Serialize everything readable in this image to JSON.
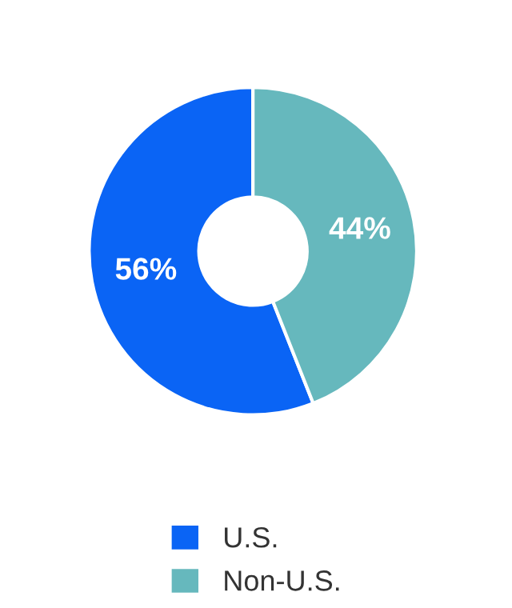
{
  "chart_data": {
    "type": "donut",
    "categories": [
      "U.S.",
      "Non-U.S."
    ],
    "values": [
      56,
      44
    ],
    "colors": [
      "#0a64f5",
      "#66b8bd"
    ],
    "value_labels": [
      "56%",
      "44%"
    ],
    "legend": "bottom"
  }
}
